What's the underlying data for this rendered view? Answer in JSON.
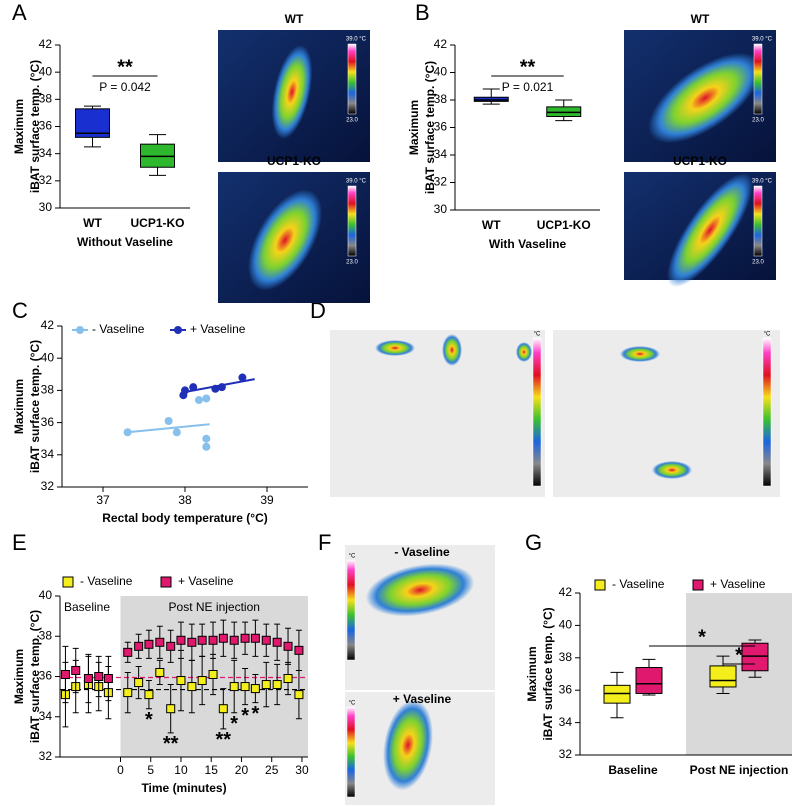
{
  "panel_labels": [
    "A",
    "B",
    "C",
    "D",
    "E",
    "F",
    "G"
  ],
  "images": {
    "A": {
      "labels": [
        "WT",
        "UCP1-KO"
      ],
      "scale_max": "39.0 °C",
      "scale_min": "23.0"
    },
    "B": {
      "labels": [
        "WT",
        "UCP1-KO"
      ],
      "scale_max": "39.0 °C",
      "scale_min": "23.0"
    },
    "D": {
      "scale_unit": "°C"
    },
    "F": {
      "labels": [
        "- Vaseline",
        "+ Vaseline"
      ],
      "scale_unit": "°C"
    }
  },
  "chart_data": [
    {
      "type": "box",
      "y_label": [
        "Maximum",
        "iBAT surface temp. (°C)"
      ],
      "x_label": "Without Vaseline",
      "categories": [
        "WT",
        "UCP1-KO"
      ],
      "series": [
        {
          "colors": [
            "#1a2fd0",
            "#2eb82e"
          ],
          "min": [
            34.5,
            32.4
          ],
          "q1": [
            35.2,
            33.0
          ],
          "median": [
            35.5,
            33.8
          ],
          "q3": [
            37.3,
            34.7
          ],
          "max": [
            37.5,
            35.4
          ]
        }
      ],
      "ylim": [
        30,
        42
      ],
      "yticks": [
        30,
        32,
        34,
        36,
        38,
        40,
        42
      ],
      "significance": [
        {
          "stars": "**",
          "p": "P = 0.042"
        }
      ]
    },
    {
      "type": "box",
      "y_label": [
        "Maximum",
        "iBAT surface temp. (°C)"
      ],
      "x_label": "With Vaseline",
      "categories": [
        "WT",
        "UCP1-KO"
      ],
      "series": [
        {
          "colors": [
            "#1a2fd0",
            "#2eb82e"
          ],
          "min": [
            37.7,
            36.5
          ],
          "q1": [
            37.9,
            36.8
          ],
          "median": [
            38.0,
            37.1
          ],
          "q3": [
            38.2,
            37.5
          ],
          "max": [
            38.8,
            38.0
          ]
        }
      ],
      "ylim": [
        30,
        42
      ],
      "yticks": [
        30,
        32,
        34,
        36,
        38,
        40,
        42
      ],
      "significance": [
        {
          "stars": "**",
          "p": "P = 0.021"
        }
      ]
    },
    {
      "type": "scatter",
      "y_label": [
        "Maximum",
        "iBAT surface temp. (°C)"
      ],
      "x_label": "Rectal body temperature (°C)",
      "series": [
        {
          "name": "- Vaseline",
          "color": "#86c0ec",
          "x": [
            37.3,
            37.8,
            37.9,
            38.17,
            38.26,
            38.26,
            38.26
          ],
          "values": [
            35.4,
            36.1,
            35.4,
            37.4,
            37.5,
            35.0,
            34.5
          ],
          "trend": {
            "x": [
              37.3,
              38.3
            ],
            "values": [
              35.4,
              35.9
            ]
          }
        },
        {
          "name": "+ Vaseline",
          "color": "#1f2fb8",
          "x": [
            38.0,
            37.98,
            38.1,
            38.37,
            38.45,
            38.7
          ],
          "values": [
            38.0,
            37.7,
            38.2,
            38.1,
            38.2,
            38.8
          ],
          "trend": {
            "x": [
              38.0,
              38.85
            ],
            "values": [
              37.9,
              38.7
            ]
          }
        }
      ],
      "xlim": [
        36.5,
        39.5
      ],
      "xticks": [
        37,
        38,
        39
      ],
      "ylim": [
        32,
        42
      ],
      "yticks": [
        32,
        34,
        36,
        38,
        40,
        42
      ]
    },
    {
      "type": "errorbar",
      "y_label": [
        "Maximum",
        "iBAT surface temp. (°C)"
      ],
      "x_label": "Time (minutes)",
      "region_labels": [
        "Baseline",
        "Post NE injection"
      ],
      "x": [
        -9.1,
        -7.4,
        -5.3,
        -3.6,
        -2.0,
        1.2,
        3.0,
        4.7,
        6.5,
        8.3,
        10.0,
        11.8,
        13.5,
        15.3,
        17.0,
        18.8,
        20.6,
        22.3,
        24.1,
        25.9,
        27.7,
        29.5
      ],
      "series": [
        {
          "name": "- Vaseline",
          "color": "#f4ee1c",
          "values": [
            35.1,
            35.5,
            35.6,
            35.5,
            35.2,
            35.2,
            35.7,
            35.1,
            36.2,
            34.4,
            35.8,
            35.5,
            35.8,
            36.1,
            34.4,
            35.5,
            35.5,
            35.4,
            35.6,
            35.6,
            35.9,
            35.1
          ],
          "errors": [
            1.6,
            1.3,
            1.4,
            1.2,
            1.3,
            1.0,
            0.8,
            0.7,
            0.6,
            1.2,
            1.5,
            1.3,
            1.2,
            1.0,
            1.0,
            1.3,
            0.9,
            0.7,
            1.1,
            1.0,
            0.8,
            1.2
          ],
          "significance": [
            null,
            null,
            null,
            null,
            null,
            null,
            null,
            "*",
            null,
            "**",
            null,
            null,
            null,
            null,
            "**",
            "*",
            "*",
            "*",
            null,
            null,
            null,
            null
          ]
        },
        {
          "name": "+ Vaseline",
          "color": "#e0196e",
          "values": [
            36.1,
            36.3,
            35.9,
            36.0,
            35.9,
            37.2,
            37.5,
            37.6,
            37.7,
            37.5,
            37.8,
            37.7,
            37.8,
            37.8,
            37.9,
            37.8,
            37.9,
            37.9,
            37.8,
            37.7,
            37.5,
            37.3
          ],
          "errors": [
            1.4,
            1.1,
            1.2,
            1.0,
            1.1,
            0.5,
            0.6,
            0.7,
            0.8,
            0.8,
            0.9,
            0.9,
            0.8,
            0.9,
            0.9,
            0.9,
            0.8,
            0.9,
            0.8,
            0.9,
            0.9,
            1.0
          ]
        }
      ],
      "reference_lines": [
        {
          "value": 35.95,
          "color": "#e0196e"
        },
        {
          "value": 35.35,
          "color": "#000000"
        }
      ],
      "xlim": [
        -10,
        31
      ],
      "xticks": [
        0,
        5,
        10,
        15,
        20,
        25,
        30
      ],
      "ylim": [
        32,
        40
      ],
      "yticks": [
        32,
        34,
        36,
        38,
        40
      ]
    },
    {
      "type": "box",
      "y_label": [
        "Maximum",
        "iBAT surface temp. (°C)"
      ],
      "categories": [
        "Baseline",
        "Post NE injection"
      ],
      "series": [
        {
          "name": "- Vaseline",
          "color": "#f4ee1c",
          "min": [
            34.3,
            35.8
          ],
          "q1": [
            35.2,
            36.2
          ],
          "median": [
            35.8,
            36.6
          ],
          "q3": [
            36.3,
            37.5
          ],
          "max": [
            37.1,
            38.1
          ]
        },
        {
          "name": "+ Vaseline",
          "color": "#e0196e",
          "min": [
            35.7,
            36.8
          ],
          "q1": [
            35.8,
            37.2
          ],
          "median": [
            36.4,
            38.1
          ],
          "q3": [
            37.4,
            38.9
          ],
          "max": [
            37.9,
            39.1
          ]
        }
      ],
      "ylim": [
        32,
        42
      ],
      "yticks": [
        32,
        34,
        36,
        38,
        40,
        42
      ],
      "significance": [
        {
          "stars": "*"
        },
        {
          "stars": "*"
        }
      ]
    }
  ]
}
